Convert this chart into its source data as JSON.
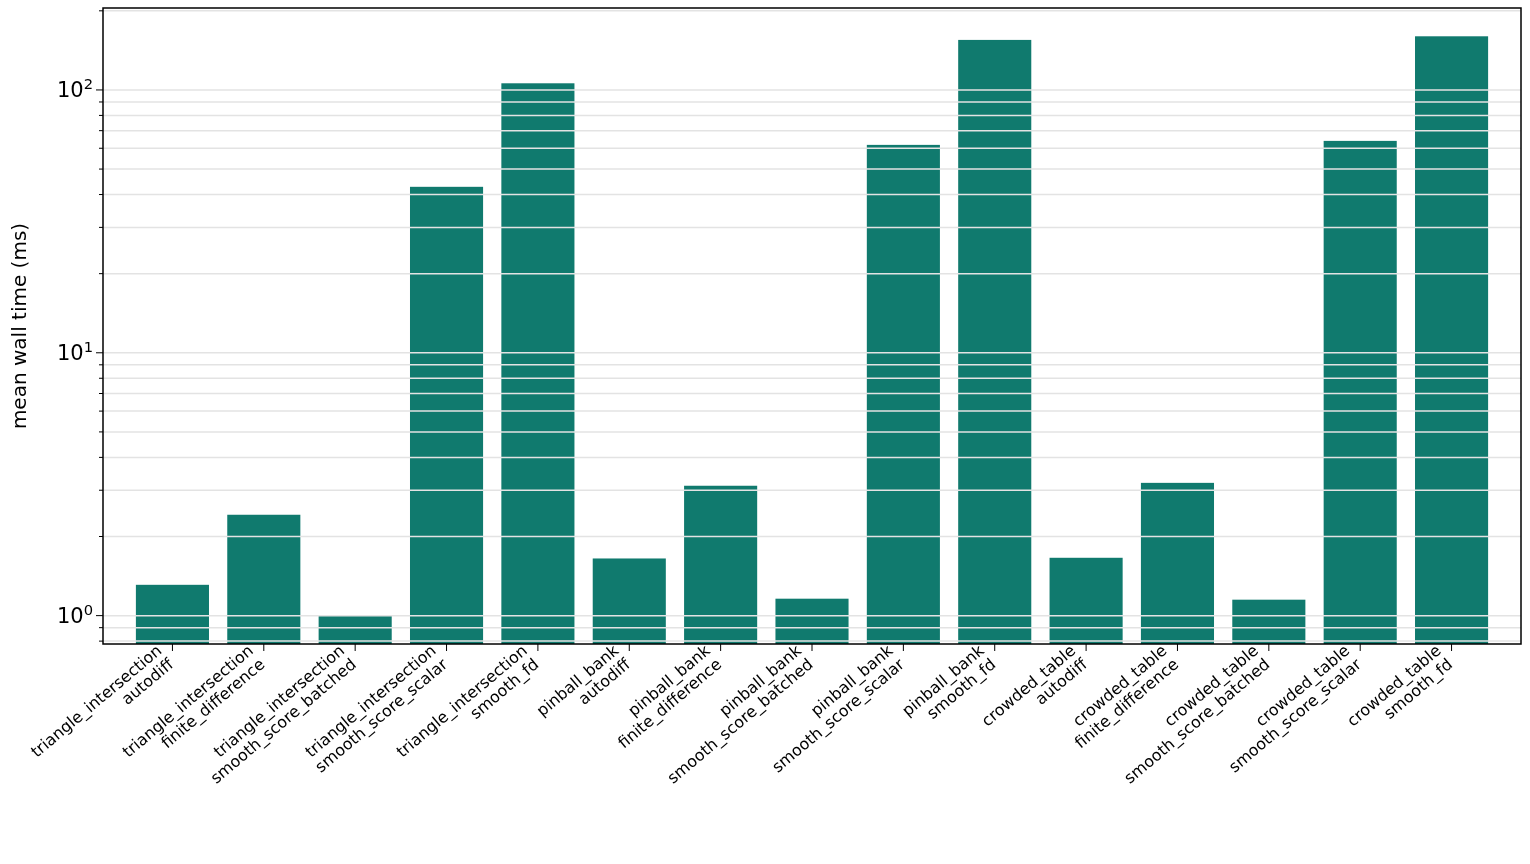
{
  "chart_data": {
    "type": "bar",
    "ylabel": "mean wall time (ms)",
    "log": true,
    "grid": "y",
    "color": "#107a6e",
    "categories": [
      "triangle_intersection\nautodiff",
      "triangle_intersection\nfinite_difference",
      "triangle_intersection\nsmooth_score_batched",
      "triangle_intersection\nsmooth_score_scalar",
      "triangle_intersection\nsmooth_fd",
      "pinball_bank\nautodiff",
      "pinball_bank\nfinite_difference",
      "pinball_bank\nsmooth_score_batched",
      "pinball_bank\nsmooth_score_scalar",
      "pinball_bank\nsmooth_fd",
      "crowded_table\nautodiff",
      "crowded_table\nfinite_difference",
      "crowded_table\nsmooth_score_batched",
      "crowded_table\nsmooth_score_scalar",
      "crowded_table\nsmooth_fd"
    ],
    "values": [
      1.31,
      2.42,
      1.0,
      42.8,
      106,
      1.65,
      3.12,
      1.16,
      61.8,
      155,
      1.66,
      3.2,
      1.15,
      64,
      160
    ],
    "ylim": [
      0.78,
      205
    ],
    "yticks": [
      {
        "value": 0.8,
        "label": null
      },
      {
        "value": 0.9,
        "label": null
      },
      {
        "value": 1,
        "label": "10$^{0}$"
      },
      {
        "value": 2,
        "label": null
      },
      {
        "value": 3,
        "label": null
      },
      {
        "value": 4,
        "label": null
      },
      {
        "value": 5,
        "label": null
      },
      {
        "value": 6,
        "label": null
      },
      {
        "value": 7,
        "label": null
      },
      {
        "value": 8,
        "label": null
      },
      {
        "value": 9,
        "label": null
      },
      {
        "value": 10,
        "label": "10$^{1}$"
      },
      {
        "value": 20,
        "label": null
      },
      {
        "value": 30,
        "label": null
      },
      {
        "value": 40,
        "label": null
      },
      {
        "value": 50,
        "label": null
      },
      {
        "value": 60,
        "label": null
      },
      {
        "value": 70,
        "label": null
      },
      {
        "value": 80,
        "label": null
      },
      {
        "value": 90,
        "label": null
      },
      {
        "value": 100,
        "label": "10$^{2}$"
      },
      {
        "value": 200,
        "label": null
      }
    ]
  }
}
